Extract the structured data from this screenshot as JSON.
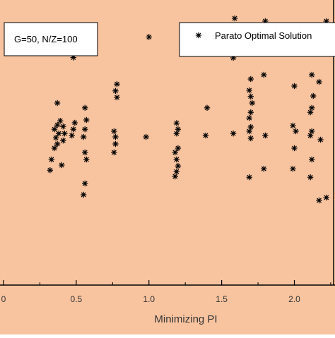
{
  "chart_data": {
    "type": "scatter",
    "title": "",
    "xlabel": "Minimizing PI",
    "ylabel": "",
    "xlim": [
      0.0,
      2.3
    ],
    "ylim": [
      0.0,
      1.0
    ],
    "x_ticks": [
      0.0,
      0.5,
      1.0,
      1.5,
      2.0
    ],
    "x_tick_labels": [
      "0",
      "0.5",
      "1.0",
      "1.5",
      "2.0"
    ],
    "grid": false,
    "legend_position": "top-right",
    "annotation": "G=50, N/Z=100",
    "colors": {
      "background": "#f8c4a0",
      "marker": "#000000",
      "frame": "#000000",
      "box": "#ffffff"
    },
    "series": [
      {
        "name": "Parato Optimal Solution",
        "marker": "asterisk",
        "points": [
          [
            0.32,
            0.407
          ],
          [
            0.33,
            0.445
          ],
          [
            0.35,
            0.485
          ],
          [
            0.37,
            0.5
          ],
          [
            0.36,
            0.522
          ],
          [
            0.38,
            0.537
          ],
          [
            0.35,
            0.552
          ],
          [
            0.37,
            0.567
          ],
          [
            0.39,
            0.582
          ],
          [
            0.37,
            0.645
          ],
          [
            0.4,
            0.425
          ],
          [
            0.41,
            0.512
          ],
          [
            0.42,
            0.537
          ],
          [
            0.41,
            0.562
          ],
          [
            0.47,
            0.53
          ],
          [
            0.48,
            0.552
          ],
          [
            0.49,
            0.575
          ],
          [
            0.48,
            0.806
          ],
          [
            0.49,
            0.825
          ],
          [
            0.48,
            0.838
          ],
          [
            0.49,
            0.848
          ],
          [
            0.55,
            0.32
          ],
          [
            0.56,
            0.36
          ],
          [
            0.57,
            0.445
          ],
          [
            0.56,
            0.47
          ],
          [
            0.55,
            0.525
          ],
          [
            0.56,
            0.552
          ],
          [
            0.57,
            0.585
          ],
          [
            0.56,
            0.628
          ],
          [
            0.76,
            0.47
          ],
          [
            0.77,
            0.5
          ],
          [
            0.77,
            0.525
          ],
          [
            0.76,
            0.545
          ],
          [
            0.78,
            0.665
          ],
          [
            0.77,
            0.688
          ],
          [
            0.78,
            0.712
          ],
          [
            0.98,
            0.525
          ],
          [
            1.0,
            0.879
          ],
          [
            1.18,
            0.385
          ],
          [
            1.19,
            0.402
          ],
          [
            1.2,
            0.422
          ],
          [
            1.19,
            0.445
          ],
          [
            1.18,
            0.47
          ],
          [
            1.2,
            0.485
          ],
          [
            1.19,
            0.537
          ],
          [
            1.2,
            0.552
          ],
          [
            1.19,
            0.574
          ],
          [
            1.39,
            0.53
          ],
          [
            1.4,
            0.628
          ],
          [
            1.58,
            0.537
          ],
          [
            1.58,
            0.805
          ],
          [
            1.59,
            0.822
          ],
          [
            1.58,
            0.838
          ],
          [
            1.59,
            0.855
          ],
          [
            1.58,
            0.872
          ],
          [
            1.59,
            0.892
          ],
          [
            1.58,
            0.912
          ],
          [
            1.59,
            0.945
          ],
          [
            1.6,
            1.04
          ],
          [
            1.69,
            0.382
          ],
          [
            1.7,
            0.52
          ],
          [
            1.69,
            0.545
          ],
          [
            1.7,
            0.56
          ],
          [
            1.69,
            0.592
          ],
          [
            1.7,
            0.612
          ],
          [
            1.71,
            0.645
          ],
          [
            1.7,
            0.668
          ],
          [
            1.69,
            0.69
          ],
          [
            1.7,
            0.73
          ],
          [
            1.79,
            0.412
          ],
          [
            1.8,
            0.53
          ],
          [
            1.79,
            0.745
          ],
          [
            1.8,
            0.935
          ],
          [
            1.99,
            0.412
          ],
          [
            2.0,
            0.485
          ],
          [
            2.01,
            0.545
          ],
          [
            1.99,
            0.565
          ],
          [
            2.0,
            0.705
          ],
          [
            2.11,
            0.382
          ],
          [
            2.12,
            0.445
          ],
          [
            2.11,
            0.53
          ],
          [
            2.12,
            0.545
          ],
          [
            2.11,
            0.612
          ],
          [
            2.12,
            0.628
          ],
          [
            2.13,
            0.67
          ],
          [
            2.12,
            0.745
          ],
          [
            2.17,
            0.3
          ],
          [
            2.18,
            0.515
          ],
          [
            2.17,
            0.72
          ],
          [
            2.18,
            0.885
          ],
          [
            2.22,
            0.31
          ],
          [
            2.23,
            0.83
          ],
          [
            2.22,
            0.935
          ]
        ]
      }
    ]
  }
}
